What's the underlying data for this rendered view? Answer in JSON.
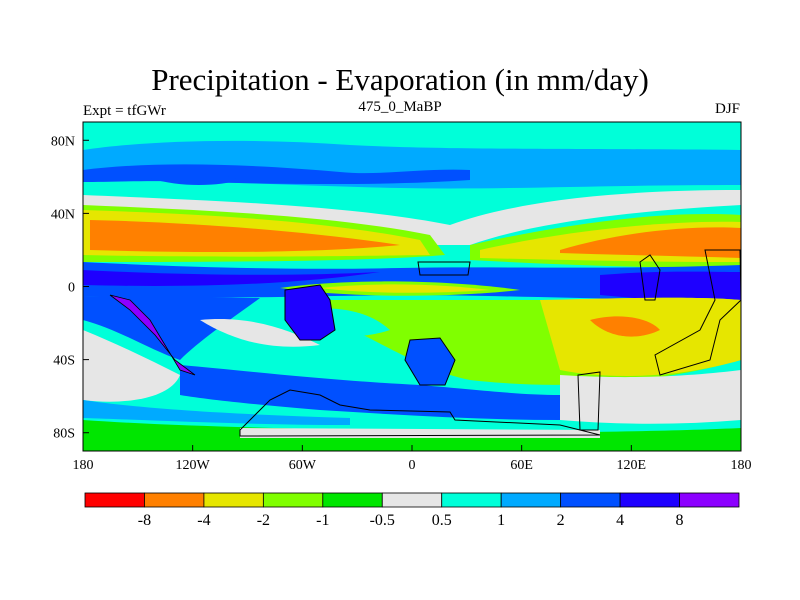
{
  "figure": {
    "title": "Precipitation - Evaporation (in mm/day)",
    "left_label": "Expt = tfGWr",
    "center_label": "475_0_MaBP",
    "right_label": "DJF"
  },
  "map": {
    "lon_range": [
      -180,
      180
    ],
    "lat_range": [
      -90,
      90
    ],
    "x_ticks": [
      {
        "value": -180,
        "label": "180"
      },
      {
        "value": -120,
        "label": "120W"
      },
      {
        "value": -60,
        "label": "60W"
      },
      {
        "value": 0,
        "label": "0"
      },
      {
        "value": 60,
        "label": "60E"
      },
      {
        "value": 120,
        "label": "120E"
      },
      {
        "value": 180,
        "label": "180"
      }
    ],
    "y_ticks": [
      {
        "value": 80,
        "label": "80N"
      },
      {
        "value": 40,
        "label": "40N"
      },
      {
        "value": 0,
        "label": "0"
      },
      {
        "value": -40,
        "label": "40S"
      },
      {
        "value": -80,
        "label": "80S"
      }
    ]
  },
  "colorbar": {
    "colors": [
      "#ff0000",
      "#ff8000",
      "#e6e600",
      "#80ff00",
      "#00e600",
      "#e6e6e6",
      "#00ffd9",
      "#00aaff",
      "#0050ff",
      "#1e00ff",
      "#8c00ff"
    ],
    "labels": [
      "-8",
      "-4",
      "-2",
      "-1",
      "-0.5",
      "0.5",
      "1",
      "2",
      "4",
      "8"
    ]
  }
}
